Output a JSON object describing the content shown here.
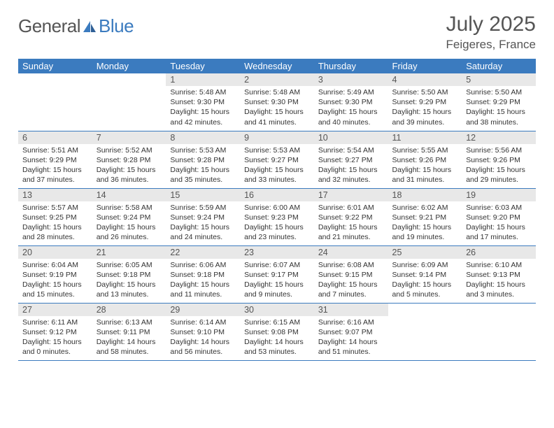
{
  "brand": {
    "part1": "General",
    "part2": "Blue"
  },
  "title": "July 2025",
  "location": "Feigeres, France",
  "colors": {
    "header_bg": "#3b7bbf",
    "daynum_bg": "#e8e8e8",
    "border": "#3b7bbf",
    "text": "#333333",
    "muted": "#555555"
  },
  "typography": {
    "title_fontsize": 30,
    "location_fontsize": 17,
    "header_fontsize": 13,
    "daynum_fontsize": 12.5,
    "body_fontsize": 10.5
  },
  "weekdays": [
    "Sunday",
    "Monday",
    "Tuesday",
    "Wednesday",
    "Thursday",
    "Friday",
    "Saturday"
  ],
  "weeks": [
    [
      null,
      null,
      {
        "n": "1",
        "sr": "5:48 AM",
        "ss": "9:30 PM",
        "dl": "15 hours and 42 minutes."
      },
      {
        "n": "2",
        "sr": "5:48 AM",
        "ss": "9:30 PM",
        "dl": "15 hours and 41 minutes."
      },
      {
        "n": "3",
        "sr": "5:49 AM",
        "ss": "9:30 PM",
        "dl": "15 hours and 40 minutes."
      },
      {
        "n": "4",
        "sr": "5:50 AM",
        "ss": "9:29 PM",
        "dl": "15 hours and 39 minutes."
      },
      {
        "n": "5",
        "sr": "5:50 AM",
        "ss": "9:29 PM",
        "dl": "15 hours and 38 minutes."
      }
    ],
    [
      {
        "n": "6",
        "sr": "5:51 AM",
        "ss": "9:29 PM",
        "dl": "15 hours and 37 minutes."
      },
      {
        "n": "7",
        "sr": "5:52 AM",
        "ss": "9:28 PM",
        "dl": "15 hours and 36 minutes."
      },
      {
        "n": "8",
        "sr": "5:53 AM",
        "ss": "9:28 PM",
        "dl": "15 hours and 35 minutes."
      },
      {
        "n": "9",
        "sr": "5:53 AM",
        "ss": "9:27 PM",
        "dl": "15 hours and 33 minutes."
      },
      {
        "n": "10",
        "sr": "5:54 AM",
        "ss": "9:27 PM",
        "dl": "15 hours and 32 minutes."
      },
      {
        "n": "11",
        "sr": "5:55 AM",
        "ss": "9:26 PM",
        "dl": "15 hours and 31 minutes."
      },
      {
        "n": "12",
        "sr": "5:56 AM",
        "ss": "9:26 PM",
        "dl": "15 hours and 29 minutes."
      }
    ],
    [
      {
        "n": "13",
        "sr": "5:57 AM",
        "ss": "9:25 PM",
        "dl": "15 hours and 28 minutes."
      },
      {
        "n": "14",
        "sr": "5:58 AM",
        "ss": "9:24 PM",
        "dl": "15 hours and 26 minutes."
      },
      {
        "n": "15",
        "sr": "5:59 AM",
        "ss": "9:24 PM",
        "dl": "15 hours and 24 minutes."
      },
      {
        "n": "16",
        "sr": "6:00 AM",
        "ss": "9:23 PM",
        "dl": "15 hours and 23 minutes."
      },
      {
        "n": "17",
        "sr": "6:01 AM",
        "ss": "9:22 PM",
        "dl": "15 hours and 21 minutes."
      },
      {
        "n": "18",
        "sr": "6:02 AM",
        "ss": "9:21 PM",
        "dl": "15 hours and 19 minutes."
      },
      {
        "n": "19",
        "sr": "6:03 AM",
        "ss": "9:20 PM",
        "dl": "15 hours and 17 minutes."
      }
    ],
    [
      {
        "n": "20",
        "sr": "6:04 AM",
        "ss": "9:19 PM",
        "dl": "15 hours and 15 minutes."
      },
      {
        "n": "21",
        "sr": "6:05 AM",
        "ss": "9:18 PM",
        "dl": "15 hours and 13 minutes."
      },
      {
        "n": "22",
        "sr": "6:06 AM",
        "ss": "9:18 PM",
        "dl": "15 hours and 11 minutes."
      },
      {
        "n": "23",
        "sr": "6:07 AM",
        "ss": "9:17 PM",
        "dl": "15 hours and 9 minutes."
      },
      {
        "n": "24",
        "sr": "6:08 AM",
        "ss": "9:15 PM",
        "dl": "15 hours and 7 minutes."
      },
      {
        "n": "25",
        "sr": "6:09 AM",
        "ss": "9:14 PM",
        "dl": "15 hours and 5 minutes."
      },
      {
        "n": "26",
        "sr": "6:10 AM",
        "ss": "9:13 PM",
        "dl": "15 hours and 3 minutes."
      }
    ],
    [
      {
        "n": "27",
        "sr": "6:11 AM",
        "ss": "9:12 PM",
        "dl": "15 hours and 0 minutes."
      },
      {
        "n": "28",
        "sr": "6:13 AM",
        "ss": "9:11 PM",
        "dl": "14 hours and 58 minutes."
      },
      {
        "n": "29",
        "sr": "6:14 AM",
        "ss": "9:10 PM",
        "dl": "14 hours and 56 minutes."
      },
      {
        "n": "30",
        "sr": "6:15 AM",
        "ss": "9:08 PM",
        "dl": "14 hours and 53 minutes."
      },
      {
        "n": "31",
        "sr": "6:16 AM",
        "ss": "9:07 PM",
        "dl": "14 hours and 51 minutes."
      },
      null,
      null
    ]
  ],
  "labels": {
    "sunrise": "Sunrise:",
    "sunset": "Sunset:",
    "daylight": "Daylight:"
  }
}
